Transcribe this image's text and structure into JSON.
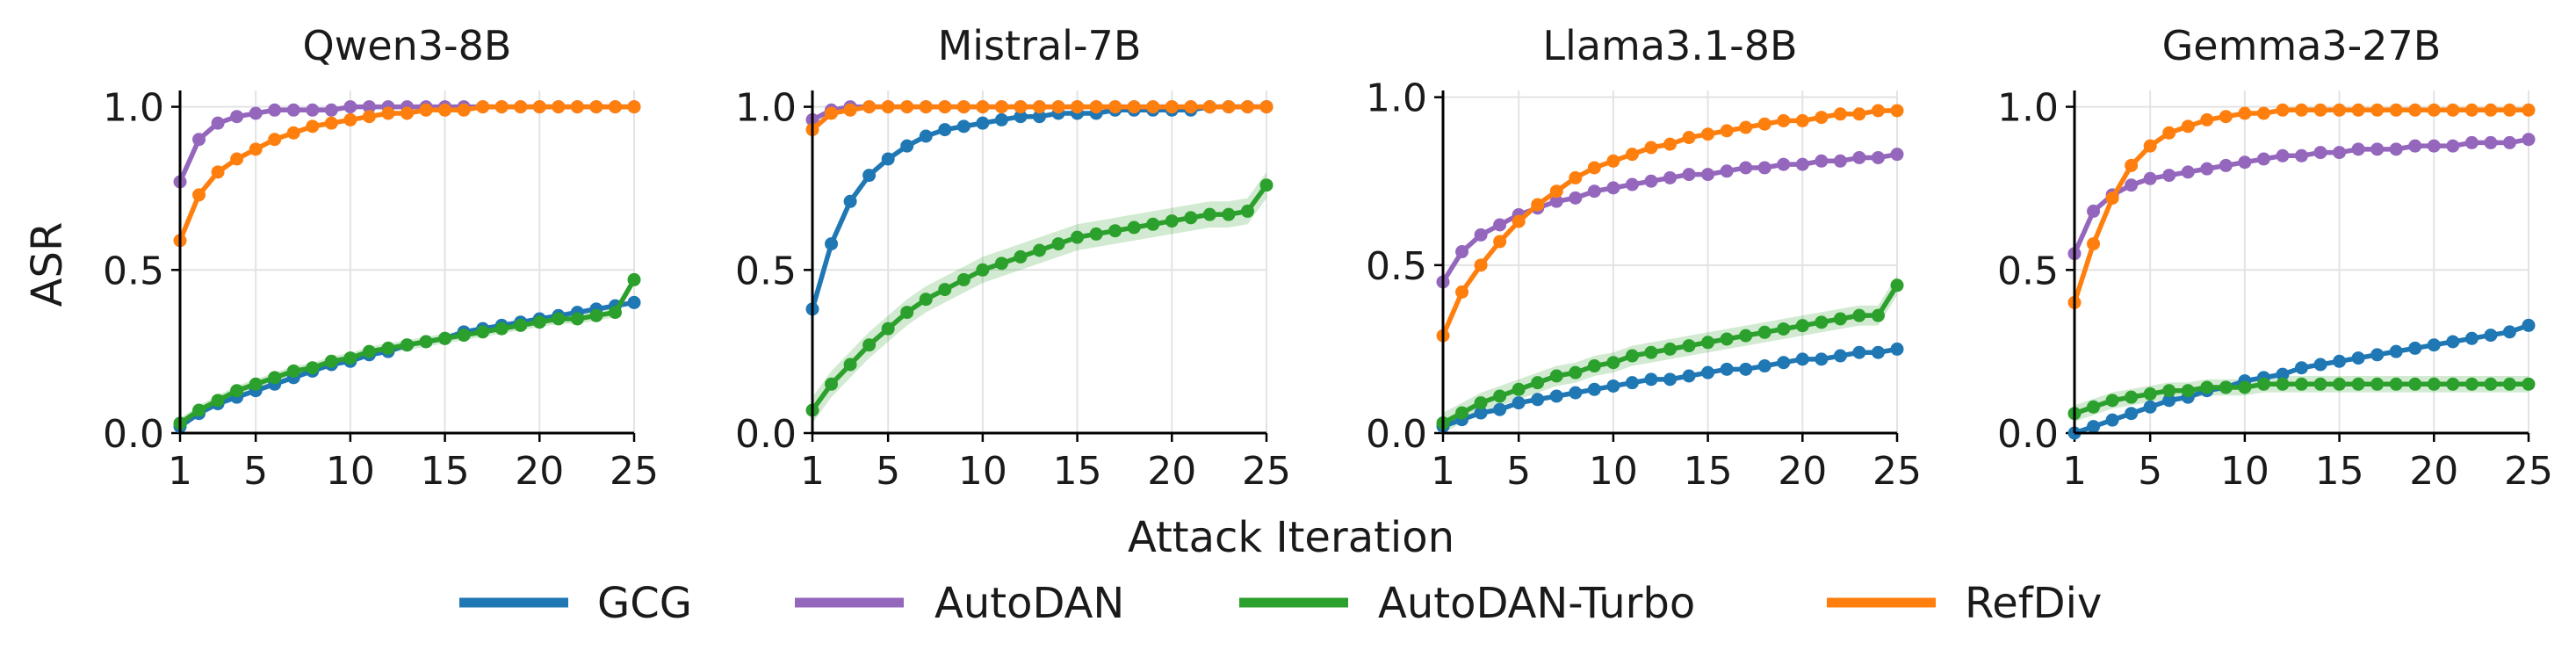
{
  "figure": {
    "ylabel": "ASR",
    "xlabel": "Attack Iteration"
  },
  "legend": [
    {
      "name": "GCG",
      "color": "#1f77b4"
    },
    {
      "name": "AutoDAN",
      "color": "#9467bd"
    },
    {
      "name": "AutoDAN-Turbo",
      "color": "#2ca02c"
    },
    {
      "name": "RefDiv",
      "color": "#ff7f0e"
    }
  ],
  "chart_data": [
    {
      "type": "line",
      "title": "Qwen3-8B",
      "xlabel": "Attack Iteration",
      "ylabel": "ASR",
      "xlim": [
        1,
        25
      ],
      "ylim": [
        0,
        1.05
      ],
      "xticks": [
        "1",
        "5",
        "10",
        "15",
        "20",
        "25"
      ],
      "yticks": [
        "0.0",
        "0.5",
        "1.0"
      ],
      "x": [
        1,
        2,
        3,
        4,
        5,
        6,
        7,
        8,
        9,
        10,
        11,
        12,
        13,
        14,
        15,
        16,
        17,
        18,
        19,
        20,
        21,
        22,
        23,
        24,
        25
      ],
      "series": [
        {
          "name": "GCG",
          "color": "#1f77b4",
          "values": [
            0.02,
            0.06,
            0.09,
            0.11,
            0.13,
            0.15,
            0.17,
            0.19,
            0.21,
            0.22,
            0.24,
            0.25,
            0.27,
            0.28,
            0.29,
            0.31,
            0.32,
            0.33,
            0.34,
            0.35,
            0.36,
            0.37,
            0.38,
            0.39,
            0.4
          ]
        },
        {
          "name": "AutoDAN",
          "color": "#9467bd",
          "values": [
            0.77,
            0.9,
            0.95,
            0.97,
            0.98,
            0.99,
            0.99,
            0.99,
            0.99,
            1.0,
            1.0,
            1.0,
            1.0,
            1.0,
            1.0,
            1.0,
            1.0,
            1.0,
            1.0,
            1.0,
            1.0,
            1.0,
            1.0,
            1.0,
            1.0
          ]
        },
        {
          "name": "AutoDAN-Turbo",
          "color": "#2ca02c",
          "values": [
            0.03,
            0.07,
            0.1,
            0.13,
            0.15,
            0.17,
            0.19,
            0.2,
            0.22,
            0.23,
            0.25,
            0.26,
            0.27,
            0.28,
            0.29,
            0.3,
            0.31,
            0.32,
            0.33,
            0.34,
            0.35,
            0.35,
            0.36,
            0.37,
            0.47
          ],
          "band": 0.015
        },
        {
          "name": "RefDiv",
          "color": "#ff7f0e",
          "values": [
            0.59,
            0.73,
            0.8,
            0.84,
            0.87,
            0.9,
            0.92,
            0.94,
            0.95,
            0.96,
            0.97,
            0.98,
            0.98,
            0.99,
            0.99,
            0.99,
            1.0,
            1.0,
            1.0,
            1.0,
            1.0,
            1.0,
            1.0,
            1.0,
            1.0
          ]
        }
      ]
    },
    {
      "type": "line",
      "title": "Mistral-7B",
      "xlabel": "Attack Iteration",
      "ylabel": "ASR",
      "xlim": [
        1,
        25
      ],
      "ylim": [
        0,
        1.05
      ],
      "xticks": [
        "1",
        "5",
        "10",
        "15",
        "20",
        "25"
      ],
      "yticks": [
        "0.0",
        "0.5",
        "1.0"
      ],
      "x": [
        1,
        2,
        3,
        4,
        5,
        6,
        7,
        8,
        9,
        10,
        11,
        12,
        13,
        14,
        15,
        16,
        17,
        18,
        19,
        20,
        21,
        22,
        23,
        24,
        25
      ],
      "series": [
        {
          "name": "GCG",
          "color": "#1f77b4",
          "values": [
            0.38,
            0.58,
            0.71,
            0.79,
            0.84,
            0.88,
            0.91,
            0.93,
            0.94,
            0.95,
            0.96,
            0.97,
            0.97,
            0.98,
            0.98,
            0.98,
            0.99,
            0.99,
            0.99,
            0.99,
            0.99,
            1.0,
            1.0,
            1.0,
            1.0
          ]
        },
        {
          "name": "AutoDAN",
          "color": "#9467bd",
          "values": [
            0.96,
            0.99,
            1.0,
            1.0,
            1.0,
            1.0,
            1.0,
            1.0,
            1.0,
            1.0,
            1.0,
            1.0,
            1.0,
            1.0,
            1.0,
            1.0,
            1.0,
            1.0,
            1.0,
            1.0,
            1.0,
            1.0,
            1.0,
            1.0,
            1.0
          ]
        },
        {
          "name": "AutoDAN-Turbo",
          "color": "#2ca02c",
          "values": [
            0.07,
            0.15,
            0.21,
            0.27,
            0.32,
            0.37,
            0.41,
            0.44,
            0.47,
            0.5,
            0.52,
            0.54,
            0.56,
            0.58,
            0.6,
            0.61,
            0.62,
            0.63,
            0.64,
            0.65,
            0.66,
            0.67,
            0.67,
            0.68,
            0.76
          ],
          "band": 0.04
        },
        {
          "name": "RefDiv",
          "color": "#ff7f0e",
          "values": [
            0.93,
            0.98,
            0.99,
            1.0,
            1.0,
            1.0,
            1.0,
            1.0,
            1.0,
            1.0,
            1.0,
            1.0,
            1.0,
            1.0,
            1.0,
            1.0,
            1.0,
            1.0,
            1.0,
            1.0,
            1.0,
            1.0,
            1.0,
            1.0,
            1.0
          ]
        }
      ]
    },
    {
      "type": "line",
      "title": "Llama3.1-8B",
      "xlabel": "Attack Iteration",
      "ylabel": "ASR",
      "xlim": [
        1,
        25
      ],
      "ylim": [
        0,
        1.02
      ],
      "xticks": [
        "1",
        "5",
        "10",
        "15",
        "20",
        "25"
      ],
      "yticks": [
        "0.0",
        "0.5",
        "1.0"
      ],
      "x": [
        1,
        2,
        3,
        4,
        5,
        6,
        7,
        8,
        9,
        10,
        11,
        12,
        13,
        14,
        15,
        16,
        17,
        18,
        19,
        20,
        21,
        22,
        23,
        24,
        25
      ],
      "series": [
        {
          "name": "GCG",
          "color": "#1f77b4",
          "values": [
            0.02,
            0.04,
            0.06,
            0.07,
            0.09,
            0.1,
            0.11,
            0.12,
            0.13,
            0.14,
            0.15,
            0.16,
            0.16,
            0.17,
            0.18,
            0.19,
            0.19,
            0.2,
            0.21,
            0.22,
            0.22,
            0.23,
            0.24,
            0.24,
            0.25
          ]
        },
        {
          "name": "AutoDAN",
          "color": "#9467bd",
          "values": [
            0.45,
            0.54,
            0.59,
            0.62,
            0.65,
            0.67,
            0.69,
            0.7,
            0.72,
            0.73,
            0.74,
            0.75,
            0.76,
            0.77,
            0.77,
            0.78,
            0.79,
            0.79,
            0.8,
            0.8,
            0.81,
            0.81,
            0.82,
            0.82,
            0.83
          ]
        },
        {
          "name": "AutoDAN-Turbo",
          "color": "#2ca02c",
          "values": [
            0.03,
            0.06,
            0.09,
            0.11,
            0.13,
            0.15,
            0.17,
            0.18,
            0.2,
            0.21,
            0.23,
            0.24,
            0.25,
            0.26,
            0.27,
            0.28,
            0.29,
            0.3,
            0.31,
            0.32,
            0.33,
            0.34,
            0.35,
            0.35,
            0.44
          ],
          "band": 0.03
        },
        {
          "name": "RefDiv",
          "color": "#ff7f0e",
          "values": [
            0.29,
            0.42,
            0.5,
            0.57,
            0.63,
            0.68,
            0.72,
            0.76,
            0.79,
            0.81,
            0.83,
            0.85,
            0.86,
            0.88,
            0.89,
            0.9,
            0.91,
            0.92,
            0.93,
            0.93,
            0.94,
            0.95,
            0.95,
            0.96,
            0.96
          ]
        }
      ]
    },
    {
      "type": "line",
      "title": "Gemma3-27B",
      "xlabel": "Attack Iteration",
      "ylabel": "ASR",
      "xlim": [
        1,
        25
      ],
      "ylim": [
        0,
        1.05
      ],
      "xticks": [
        "1",
        "5",
        "10",
        "15",
        "20",
        "25"
      ],
      "yticks": [
        "0.0",
        "0.5",
        "1.0"
      ],
      "x": [
        1,
        2,
        3,
        4,
        5,
        6,
        7,
        8,
        9,
        10,
        11,
        12,
        13,
        14,
        15,
        16,
        17,
        18,
        19,
        20,
        21,
        22,
        23,
        24,
        25
      ],
      "series": [
        {
          "name": "GCG",
          "color": "#1f77b4",
          "values": [
            0.0,
            0.02,
            0.04,
            0.06,
            0.08,
            0.1,
            0.11,
            0.13,
            0.14,
            0.16,
            0.17,
            0.18,
            0.2,
            0.21,
            0.22,
            0.23,
            0.24,
            0.25,
            0.26,
            0.27,
            0.28,
            0.29,
            0.3,
            0.31,
            0.33
          ]
        },
        {
          "name": "AutoDAN",
          "color": "#9467bd",
          "values": [
            0.55,
            0.68,
            0.73,
            0.76,
            0.78,
            0.79,
            0.8,
            0.81,
            0.82,
            0.83,
            0.84,
            0.85,
            0.85,
            0.86,
            0.86,
            0.87,
            0.87,
            0.87,
            0.88,
            0.88,
            0.88,
            0.89,
            0.89,
            0.89,
            0.9
          ]
        },
        {
          "name": "AutoDAN-Turbo",
          "color": "#2ca02c",
          "values": [
            0.06,
            0.08,
            0.1,
            0.11,
            0.12,
            0.13,
            0.13,
            0.14,
            0.14,
            0.14,
            0.15,
            0.15,
            0.15,
            0.15,
            0.15,
            0.15,
            0.15,
            0.15,
            0.15,
            0.15,
            0.15,
            0.15,
            0.15,
            0.15,
            0.15
          ],
          "band": 0.025
        },
        {
          "name": "RefDiv",
          "color": "#ff7f0e",
          "values": [
            0.4,
            0.58,
            0.72,
            0.82,
            0.88,
            0.92,
            0.94,
            0.96,
            0.97,
            0.98,
            0.98,
            0.99,
            0.99,
            0.99,
            0.99,
            0.99,
            0.99,
            0.99,
            0.99,
            0.99,
            0.99,
            0.99,
            0.99,
            0.99,
            0.99
          ]
        }
      ]
    }
  ]
}
